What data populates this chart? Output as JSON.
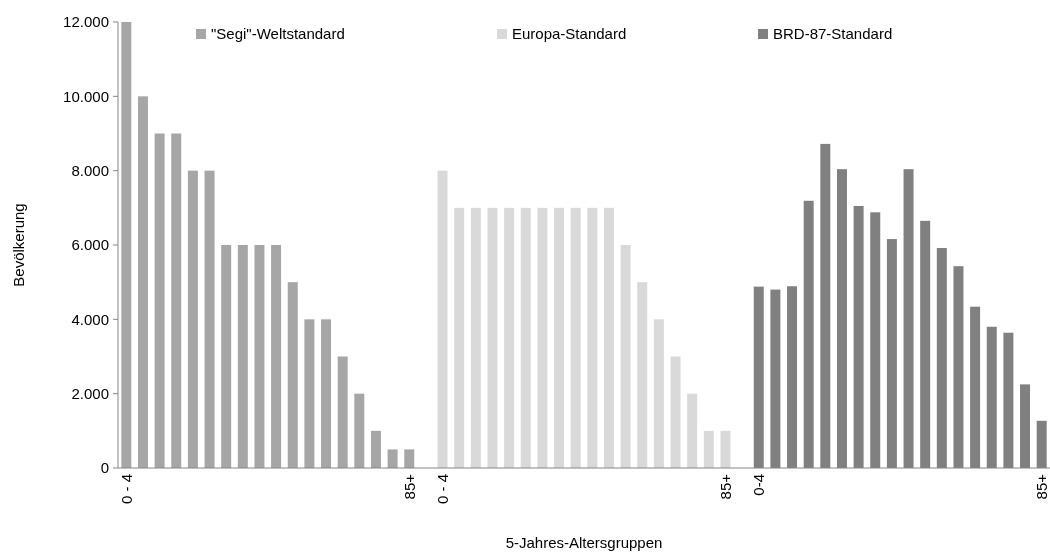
{
  "chart_data": {
    "type": "bar",
    "xlabel": "5-Jahres-Altersgruppen",
    "ylabel": "Bevölkerung",
    "categories": [
      "0 - 4",
      null,
      null,
      null,
      null,
      null,
      null,
      null,
      null,
      null,
      null,
      null,
      null,
      null,
      null,
      null,
      null,
      "85+",
      null,
      "0 - 4",
      null,
      null,
      null,
      null,
      null,
      null,
      null,
      null,
      null,
      null,
      null,
      null,
      null,
      null,
      null,
      null,
      "85+",
      null,
      "0-4",
      null,
      null,
      null,
      null,
      null,
      null,
      null,
      null,
      null,
      null,
      null,
      null,
      null,
      null,
      null,
      null,
      "85+"
    ],
    "series": [
      {
        "name": "\"Segi\"-Weltstandard",
        "color": "#a6a6a6",
        "values": [
          12000,
          10000,
          9000,
          9000,
          8000,
          8000,
          6000,
          6000,
          6000,
          6000,
          5000,
          4000,
          4000,
          3000,
          2000,
          1000,
          500,
          500,
          null,
          null,
          null,
          null,
          null,
          null,
          null,
          null,
          null,
          null,
          null,
          null,
          null,
          null,
          null,
          null,
          null,
          null,
          null,
          null,
          null,
          null,
          null,
          null,
          null,
          null,
          null,
          null,
          null,
          null,
          null,
          null,
          null,
          null,
          null,
          null,
          null,
          null
        ]
      },
      {
        "name": "Europa-Standard",
        "color": "#d9d9d9",
        "values": [
          null,
          null,
          null,
          null,
          null,
          null,
          null,
          null,
          null,
          null,
          null,
          null,
          null,
          null,
          null,
          null,
          null,
          null,
          null,
          8000,
          7000,
          7000,
          7000,
          7000,
          7000,
          7000,
          7000,
          7000,
          7000,
          7000,
          6000,
          5000,
          4000,
          3000,
          2000,
          1000,
          1000,
          null,
          null,
          null,
          null,
          null,
          null,
          null,
          null,
          null,
          null,
          null,
          null,
          null,
          null,
          null,
          null,
          null,
          null,
          null
        ]
      },
      {
        "name": "BRD-87-Standard",
        "color": "#808080",
        "values": [
          null,
          null,
          null,
          null,
          null,
          null,
          null,
          null,
          null,
          null,
          null,
          null,
          null,
          null,
          null,
          null,
          null,
          null,
          null,
          null,
          null,
          null,
          null,
          null,
          null,
          null,
          null,
          null,
          null,
          null,
          null,
          null,
          null,
          null,
          null,
          null,
          null,
          null,
          4880,
          4800,
          4890,
          7190,
          8720,
          8040,
          7050,
          6880,
          6160,
          8040,
          6650,
          5920,
          5430,
          4340,
          3800,
          3640,
          2250,
          1270
        ]
      }
    ],
    "ylim": [
      0,
      12000
    ],
    "yticks": [
      {
        "value": 0,
        "label": "0"
      },
      {
        "value": 2000,
        "label": "2.000"
      },
      {
        "value": 4000,
        "label": "4.000"
      },
      {
        "value": 6000,
        "label": "6.000"
      },
      {
        "value": 8000,
        "label": "8.000"
      },
      {
        "value": 10000,
        "label": "10.000"
      },
      {
        "value": 12000,
        "label": "12.000"
      }
    ],
    "legend": "top",
    "grid": false
  }
}
